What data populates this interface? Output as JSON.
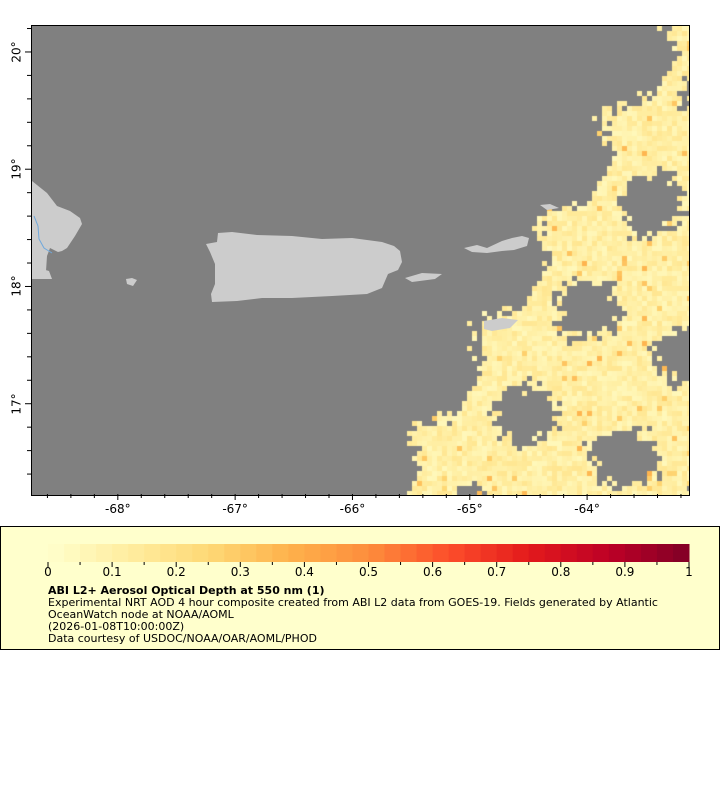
{
  "map": {
    "lon_range": [
      -68.74,
      -63.14
    ],
    "lat_range": [
      16.23,
      20.23
    ],
    "lon_ticks": [
      -68,
      -67,
      -66,
      -65,
      -64
    ],
    "lon_tick_labels": [
      "-68°",
      "-67°",
      "-66°",
      "-65°",
      "-64°"
    ],
    "lat_ticks": [
      20,
      19,
      18,
      17
    ],
    "lat_tick_labels": [
      "20°",
      "19°",
      "18°",
      "17°"
    ],
    "colors": {
      "no_data": "#808080",
      "land": "#cccccc",
      "river": "#6fa8dc",
      "legend_bg": "#ffffcc"
    }
  },
  "colorbar": {
    "range": [
      0,
      1
    ],
    "tick_labels": [
      "0",
      "0.1",
      "0.2",
      "0.3",
      "0.4",
      "0.5",
      "0.6",
      "0.7",
      "0.8",
      "0.9",
      "1"
    ],
    "colors": [
      "#ffffcc",
      "#ffeda0",
      "#fed976",
      "#feb24c",
      "#fd8d3c",
      "#fc4e2a",
      "#e31a1c",
      "#bd0026",
      "#800026"
    ]
  },
  "legend": {
    "title": "ABI L2+ Aerosol Optical Depth at 550 nm (1)",
    "line1": "Experimental NRT AOD 4 hour composite created from ABI L2 data from GOES-19. Fields generated by Atlantic",
    "line2": "OceanWatch node at NOAA/AOML",
    "line3": "(2026-01-08T10:00:00Z)",
    "line4": "Data courtesy of USDOC/NOAA/OAR/AOML/PHOD"
  }
}
